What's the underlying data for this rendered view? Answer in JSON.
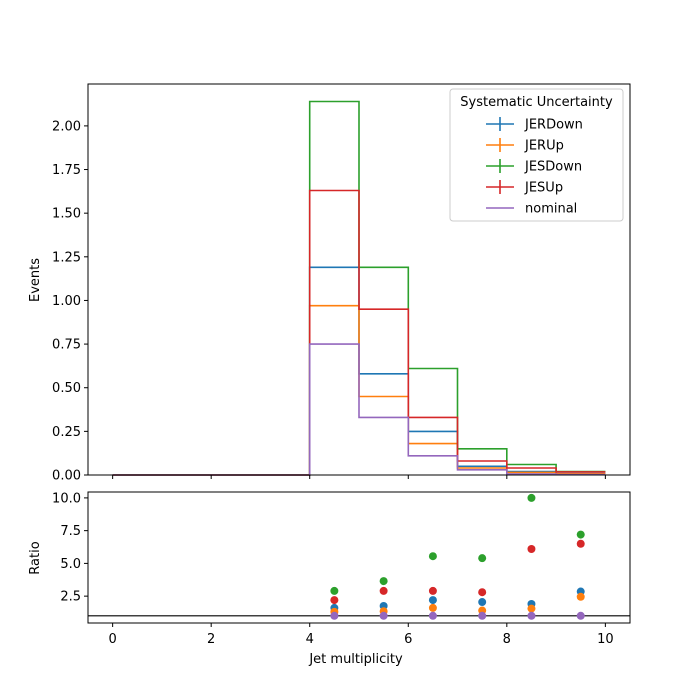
{
  "chart_data": [
    {
      "type": "line",
      "subtype": "step-histogram",
      "xlabel": "",
      "ylabel": "Events",
      "xlim": [
        -0.5,
        10.5
      ],
      "ylim": [
        0,
        2.24
      ],
      "x_ticks": [
        0,
        2,
        4,
        6,
        8,
        10
      ],
      "y_ticks": [
        "0.00",
        "0.25",
        "0.50",
        "0.75",
        "1.00",
        "1.25",
        "1.50",
        "1.75",
        "2.00"
      ],
      "bin_edges": [
        0,
        1,
        2,
        3,
        4,
        5,
        6,
        7,
        8,
        9,
        10
      ],
      "legend": {
        "title": "Systematic Uncertainty",
        "placement": "top-right"
      },
      "series": [
        {
          "name": "JERDown",
          "color": "#1f77b4",
          "values": [
            0,
            0,
            0,
            0,
            1.19,
            0.58,
            0.25,
            0.05,
            0.02,
            0.008
          ]
        },
        {
          "name": "JERUp",
          "color": "#ff7f0e",
          "values": [
            0,
            0,
            0,
            0,
            0.97,
            0.45,
            0.18,
            0.04,
            0.015,
            0.007
          ]
        },
        {
          "name": "JESDown",
          "color": "#2ca02c",
          "values": [
            0,
            0,
            0,
            0,
            2.14,
            1.19,
            0.61,
            0.15,
            0.06,
            0.02
          ]
        },
        {
          "name": "JESUp",
          "color": "#d62728",
          "values": [
            0,
            0,
            0,
            0,
            1.63,
            0.95,
            0.33,
            0.08,
            0.04,
            0.018
          ]
        },
        {
          "name": "nominal",
          "color": "#9467bd",
          "values": [
            0,
            0,
            0,
            0,
            0.75,
            0.33,
            0.11,
            0.03,
            0.006,
            0.003
          ]
        }
      ]
    },
    {
      "type": "scatter",
      "xlabel": "Jet multiplicity",
      "ylabel": "Ratio",
      "xlim": [
        -0.5,
        10.5
      ],
      "ylim": [
        0.45,
        10.45
      ],
      "x_ticks": [
        "0",
        "2",
        "4",
        "6",
        "8",
        "10"
      ],
      "y_ticks": [
        "2.5",
        "5.0",
        "7.5",
        "10.0"
      ],
      "reference_line": 1.0,
      "x": [
        4.5,
        5.5,
        6.5,
        7.5,
        8.5,
        9.5
      ],
      "series": [
        {
          "name": "JERDown",
          "color": "#1f77b4",
          "values": [
            1.6,
            1.75,
            2.2,
            2.05,
            1.9,
            2.85
          ]
        },
        {
          "name": "JERUp",
          "color": "#ff7f0e",
          "values": [
            1.3,
            1.35,
            1.6,
            1.4,
            1.55,
            2.45
          ]
        },
        {
          "name": "JESDown",
          "color": "#2ca02c",
          "values": [
            2.9,
            3.65,
            5.55,
            5.4,
            10.0,
            7.2
          ]
        },
        {
          "name": "JESUp",
          "color": "#d62728",
          "values": [
            2.2,
            2.9,
            2.9,
            2.8,
            6.1,
            6.5
          ]
        },
        {
          "name": "nominal",
          "color": "#9467bd",
          "values": [
            1.0,
            1.0,
            1.0,
            1.0,
            1.0,
            1.0
          ]
        }
      ]
    }
  ]
}
